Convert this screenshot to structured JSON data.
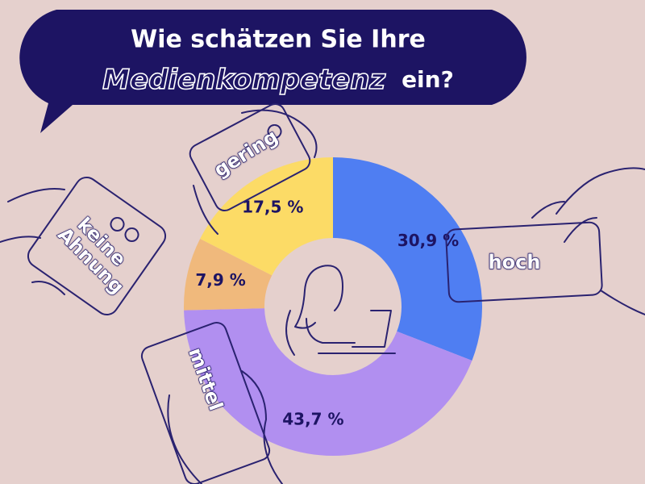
{
  "chart_data": {
    "type": "donut",
    "title": "Wie schätzen Sie Ihre",
    "title_highlight": "Medienkompetenz",
    "title_end": "ein?",
    "categories": [
      "hoch",
      "mittel",
      "keine Ahnung",
      "gering"
    ],
    "values": [
      30.9,
      43.7,
      7.9,
      17.5
    ],
    "value_labels": [
      "30,9 %",
      "43,7 %",
      "7,9 %",
      "17,5 %"
    ],
    "colors": [
      "#4f7ef2",
      "#b18ff0",
      "#f0b97c",
      "#fcdb66"
    ]
  }
}
